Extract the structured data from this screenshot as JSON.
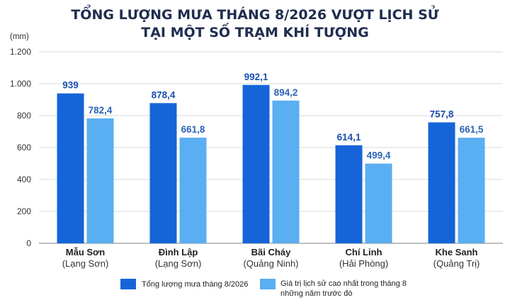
{
  "chart_data": {
    "type": "bar",
    "title": "TỔNG LƯỢNG MƯA THÁNG 8/2026 VƯỢT LỊCH SỬ",
    "subtitle": "TẠI MỘT SỐ TRẠM KHÍ TƯỢNG",
    "ylabel": "(mm)",
    "ylim": [
      0,
      1200
    ],
    "yticks": [
      {
        "value": 0,
        "label": "0"
      },
      {
        "value": 200,
        "label": "200"
      },
      {
        "value": 400,
        "label": "400"
      },
      {
        "value": 600,
        "label": "600"
      },
      {
        "value": 800,
        "label": "800"
      },
      {
        "value": 1000,
        "label": "1.000"
      },
      {
        "value": 1200,
        "label": "1.200"
      }
    ],
    "grid": true,
    "legend_position": "bottom",
    "categories": [
      {
        "name": "Mẫu Sơn",
        "sub": "(Lạng Sơn)"
      },
      {
        "name": "Đình Lập",
        "sub": "(Lạng Sơn)"
      },
      {
        "name": "Bãi Cháy",
        "sub": "(Quảng Ninh)"
      },
      {
        "name": "Chí Linh",
        "sub": "(Hải Phòng)"
      },
      {
        "name": "Khe Sanh",
        "sub": "(Quảng Trị)"
      }
    ],
    "series": [
      {
        "name": "Tổng lượng mưa tháng 8/2026",
        "color": "#1565d8",
        "label_color": "#1a4fb0",
        "values": [
          939,
          878.4,
          992.1,
          614.1,
          757.8
        ],
        "labels": [
          "939",
          "878,4",
          "992,1",
          "614,1",
          "757,8"
        ]
      },
      {
        "name": "Giá trị lịch sử cao nhất trong tháng 8 những năm trước đó",
        "name_lines": [
          "Giá trị lịch sử cao nhất trong tháng 8",
          "những năm trước đó"
        ],
        "color": "#5aaef2",
        "label_color": "#2b64b5",
        "values": [
          782.4,
          661.8,
          894.2,
          499.4,
          661.5
        ],
        "labels": [
          "782,4",
          "661,8",
          "894,2",
          "499,4",
          "661,5"
        ]
      }
    ]
  }
}
